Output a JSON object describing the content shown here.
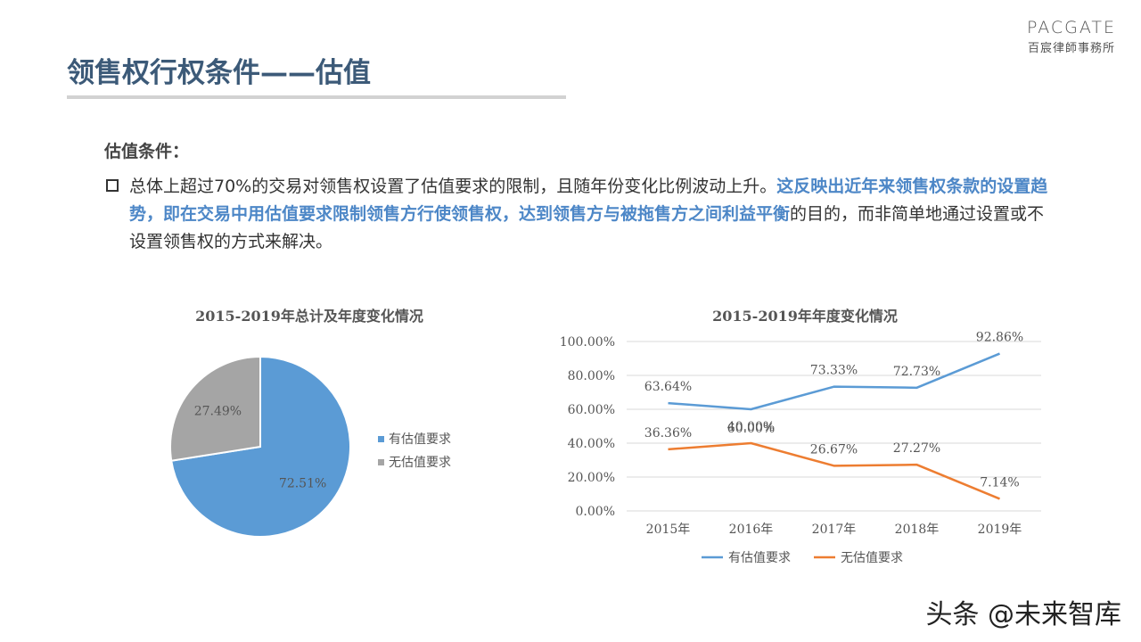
{
  "logo": {
    "mark": "PACGATE",
    "sub": "百宸律師事務所"
  },
  "page_title": "领售权行权条件——估值",
  "condition_heading": "估值条件：",
  "paragraph": {
    "part1": "总体上超过70%的交易对领售权设置了估值要求的限制，且随年份变化比例波动上升。",
    "part2_highlight": "这反映出近年来领售权条款的设置趋势，即在交易中用估值要求限制领售方行使领售权，达到领售方与被拖售方之间利益平衡",
    "part3": "的目的，而非简单地通过设置或不设置领售权的方式来解决。"
  },
  "colors": {
    "blue": "#5b9bd5",
    "gray": "#a5a5a5",
    "orange": "#ed7d31",
    "grid": "#d9d9d9"
  },
  "chart_data": [
    {
      "type": "pie",
      "title": "2015-2019年总计及年度变化情况",
      "labels": [
        "有估值要求",
        "无估值要求"
      ],
      "values": [
        72.51,
        27.49
      ],
      "data_labels": [
        "72.51%",
        "27.49%"
      ],
      "legend_placement": "right"
    },
    {
      "type": "line",
      "title": "2015-2019年年度变化情况",
      "categories": [
        "2015年",
        "2016年",
        "2017年",
        "2018年",
        "2019年"
      ],
      "ylim": [
        0,
        100
      ],
      "y_ticks": [
        "0.00%",
        "20.00%",
        "40.00%",
        "60.00%",
        "80.00%",
        "100.00%"
      ],
      "grid": true,
      "legend_placement": "bottom",
      "series": [
        {
          "name": "有估值要求",
          "values": [
            63.64,
            60.0,
            73.33,
            72.73,
            92.86
          ],
          "labels": [
            "63.64%",
            "60.00%",
            "73.33%",
            "72.73%",
            "92.86%"
          ]
        },
        {
          "name": "无估值要求",
          "values": [
            36.36,
            40.0,
            26.67,
            27.27,
            7.14
          ],
          "labels": [
            "36.36%",
            "40.00%",
            "26.67%",
            "27.27%",
            "7.14%"
          ]
        }
      ]
    }
  ],
  "watermark": "头条 @未来智库"
}
